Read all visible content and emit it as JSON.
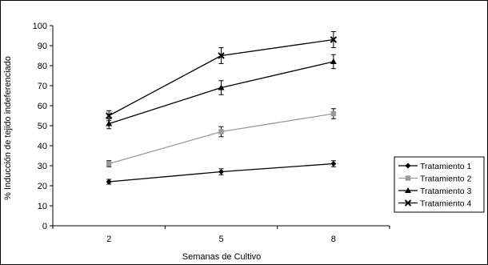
{
  "chart_data": {
    "type": "line",
    "xlabel": "Semanas de Cultivo",
    "ylabel": "% Inducción de tejido indeferenciado",
    "categories": [
      "2",
      "5",
      "8"
    ],
    "ylim": [
      0,
      100
    ],
    "yticks": [
      0,
      10,
      20,
      30,
      40,
      50,
      60,
      70,
      80,
      90,
      100
    ],
    "grid": false,
    "legend_position": "right",
    "series": [
      {
        "name": "Tratamiento 1",
        "values": [
          22,
          27,
          31
        ],
        "errors": [
          1.2,
          1.5,
          1.5
        ],
        "marker": "diamond",
        "color": "#000000"
      },
      {
        "name": "Tratamiento 2",
        "values": [
          31,
          47,
          56
        ],
        "errors": [
          1.5,
          2.5,
          2.5
        ],
        "marker": "square",
        "color": "#999999"
      },
      {
        "name": "Tratamiento 3",
        "values": [
          51,
          69,
          82
        ],
        "errors": [
          2.5,
          3.5,
          3.5
        ],
        "marker": "triangle",
        "color": "#000000"
      },
      {
        "name": "Tratamiento 4",
        "values": [
          55,
          85,
          93
        ],
        "errors": [
          2.5,
          4.0,
          4.0
        ],
        "marker": "x",
        "color": "#000000"
      }
    ]
  }
}
